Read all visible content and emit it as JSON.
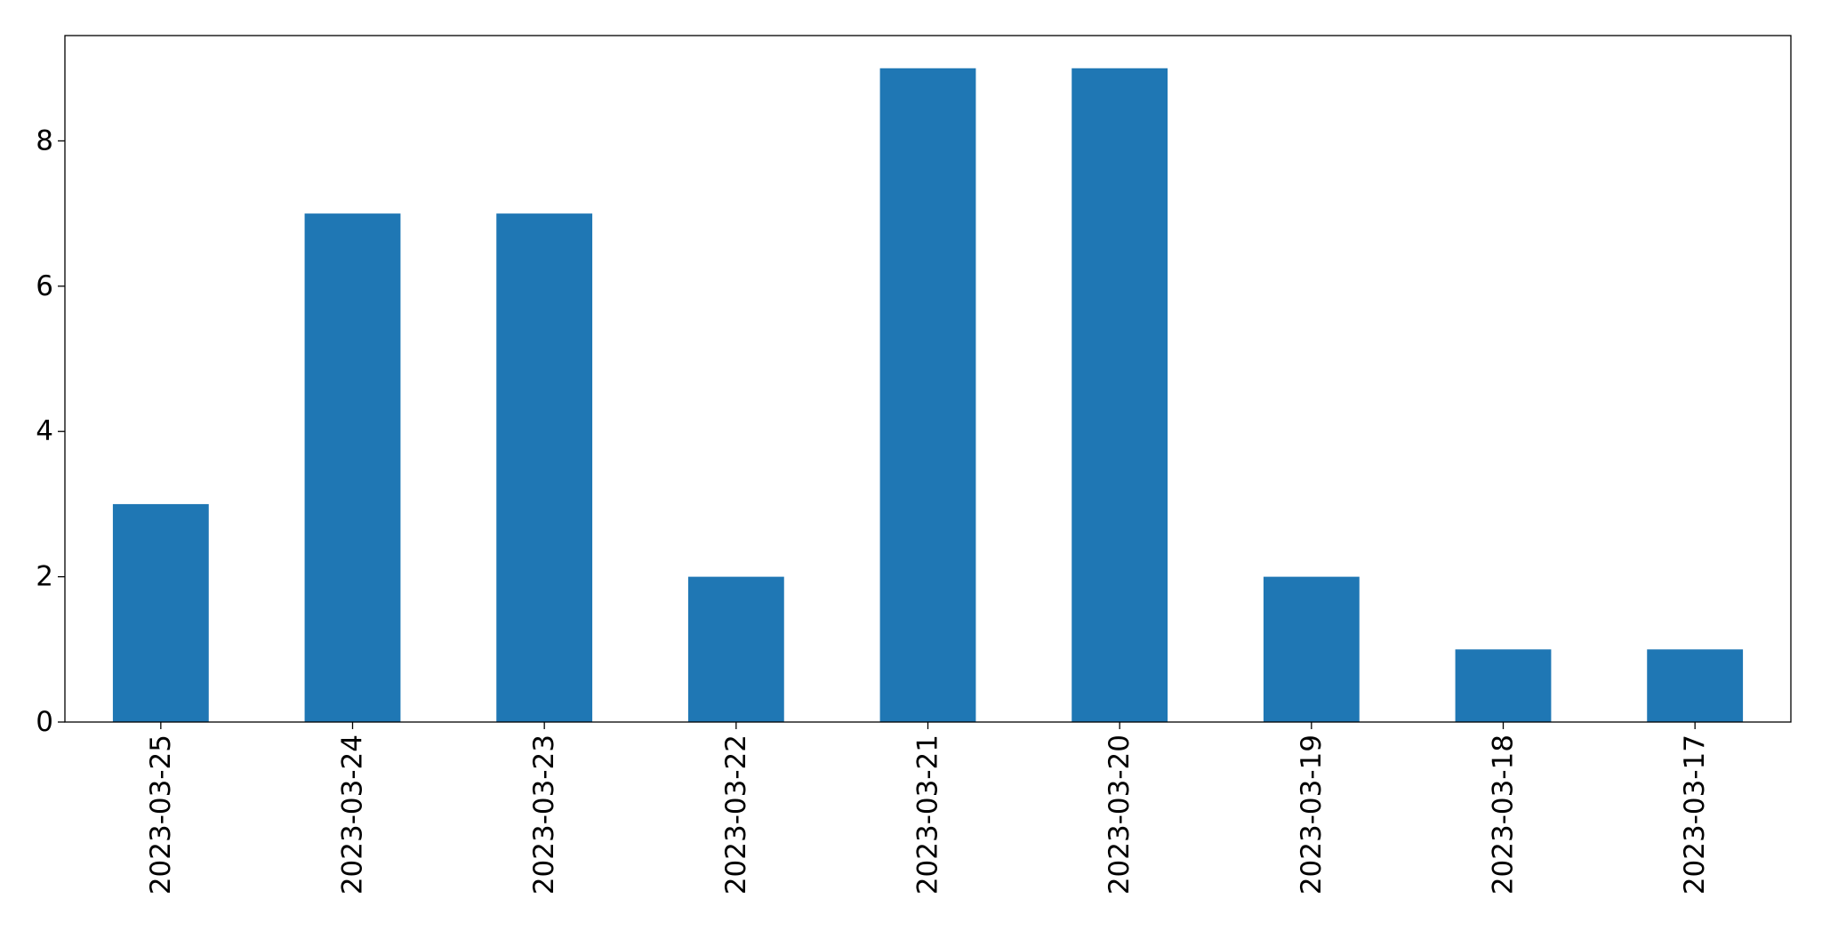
{
  "chart_data": {
    "type": "bar",
    "title": "",
    "xlabel": "",
    "ylabel": "",
    "categories": [
      "2023-03-25",
      "2023-03-24",
      "2023-03-23",
      "2023-03-22",
      "2023-03-21",
      "2023-03-20",
      "2023-03-19",
      "2023-03-18",
      "2023-03-17"
    ],
    "values": [
      3,
      7,
      7,
      2,
      9,
      9,
      2,
      1,
      1
    ],
    "ylim": [
      0,
      9.45
    ],
    "yticks": [
      0,
      2,
      4,
      6,
      8
    ],
    "bar_color": "#1f77b4",
    "grid": false,
    "legend": "none",
    "xtick_rotation": "vertical"
  }
}
